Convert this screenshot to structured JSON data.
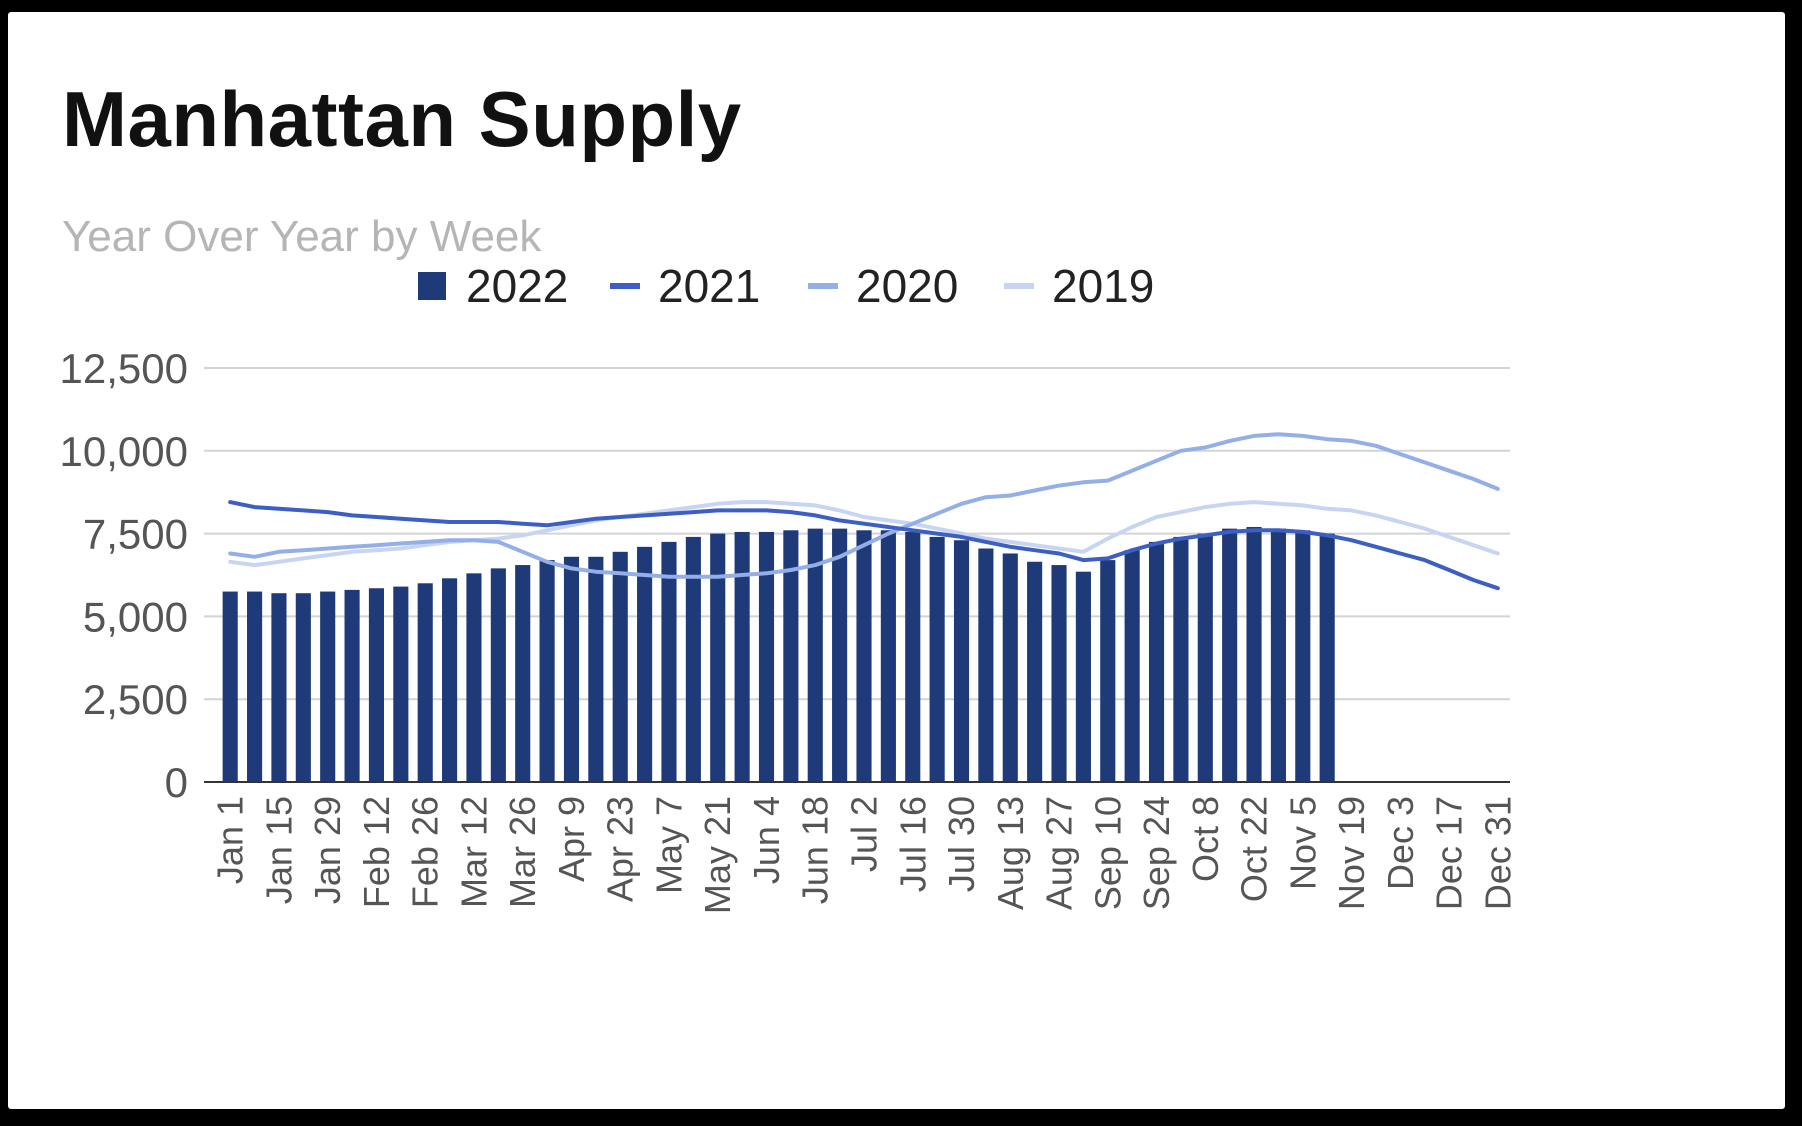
{
  "chart_data": {
    "type": "bar",
    "title": "Manhattan Supply",
    "subtitle": "Year Over Year by Week",
    "legend_position": "top",
    "grid": true,
    "ylim": [
      0,
      12500
    ],
    "yticks": [
      "0",
      "2,500",
      "5,000",
      "7,500",
      "10,000",
      "12,500"
    ],
    "ytick_values": [
      0,
      2500,
      5000,
      7500,
      10000,
      12500
    ],
    "x_ticks": [
      "Jan 1",
      "Jan 15",
      "Jan 29",
      "Feb 12",
      "Feb 26",
      "Mar 12",
      "Mar 26",
      "Apr 9",
      "Apr 23",
      "May 7",
      "May 21",
      "Jun 4",
      "Jun 18",
      "Jul 2",
      "Jul 16",
      "Jul 30",
      "Aug 13",
      "Aug 27",
      "Sep 10",
      "Sep 24",
      "Oct 8",
      "Oct 22",
      "Nov 5",
      "Nov 19",
      "Dec 3",
      "Dec 17",
      "Dec 31"
    ],
    "weeks_total": 53,
    "series": [
      {
        "name": "2022",
        "kind": "bar",
        "color": "#1f3a78",
        "values": [
          5750,
          5750,
          5700,
          5700,
          5750,
          5800,
          5850,
          5900,
          6000,
          6150,
          6300,
          6450,
          6550,
          6700,
          6800,
          6800,
          6950,
          7100,
          7250,
          7400,
          7500,
          7550,
          7550,
          7600,
          7650,
          7650,
          7600,
          7600,
          7550,
          7400,
          7300,
          7050,
          6900,
          6650,
          6550,
          6350,
          6700,
          7000,
          7250,
          7400,
          7500,
          7650,
          7700,
          7650,
          7600,
          7500
        ]
      },
      {
        "name": "2021",
        "kind": "line",
        "color": "#3d5fc4",
        "values": [
          8450,
          8300,
          8250,
          8200,
          8150,
          8050,
          8000,
          7950,
          7900,
          7850,
          7850,
          7850,
          7800,
          7750,
          7850,
          7950,
          8000,
          8050,
          8100,
          8150,
          8200,
          8200,
          8200,
          8150,
          8050,
          7900,
          7800,
          7700,
          7600,
          7500,
          7400,
          7250,
          7100,
          7000,
          6900,
          6700,
          6750,
          7000,
          7200,
          7350,
          7450,
          7550,
          7600,
          7600,
          7550,
          7450,
          7300,
          7100,
          6900,
          6700,
          6400,
          6100,
          5850
        ]
      },
      {
        "name": "2020",
        "kind": "line",
        "color": "#94aee8",
        "values": [
          6900,
          6800,
          6950,
          7000,
          7050,
          7100,
          7150,
          7200,
          7250,
          7300,
          7300,
          7250,
          6950,
          6650,
          6450,
          6350,
          6300,
          6250,
          6200,
          6200,
          6200,
          6250,
          6300,
          6400,
          6550,
          6800,
          7150,
          7500,
          7800,
          8100,
          8400,
          8600,
          8650,
          8800,
          8950,
          9050,
          9100,
          9400,
          9700,
          10000,
          10100,
          10300,
          10450,
          10500,
          10450,
          10350,
          10300,
          10150,
          9900,
          9650,
          9400,
          9150,
          8850
        ]
      },
      {
        "name": "2019",
        "kind": "line",
        "color": "#c7d5f3",
        "values": [
          6650,
          6550,
          6650,
          6750,
          6850,
          6950,
          7000,
          7050,
          7150,
          7250,
          7300,
          7350,
          7450,
          7600,
          7750,
          7900,
          8000,
          8100,
          8200,
          8300,
          8400,
          8450,
          8450,
          8400,
          8350,
          8200,
          8000,
          7900,
          7800,
          7650,
          7500,
          7350,
          7250,
          7150,
          7050,
          6950,
          7350,
          7700,
          8000,
          8150,
          8300,
          8400,
          8450,
          8400,
          8350,
          8250,
          8200,
          8050,
          7850,
          7650,
          7400,
          7150,
          6900
        ]
      }
    ]
  }
}
